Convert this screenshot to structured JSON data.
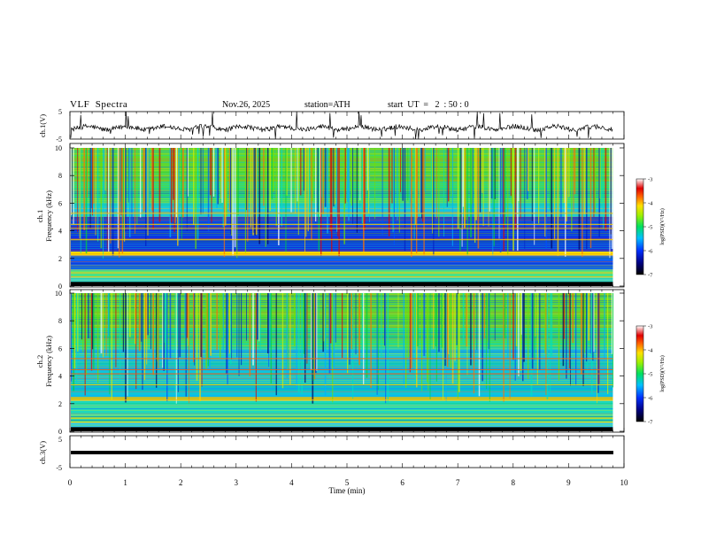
{
  "header": {
    "title": "VLF  Spectra",
    "date": "Nov.26, 2025",
    "station": "station=ATH",
    "start": "start  UT  =   2  : 50 : 0"
  },
  "chart_data": [
    {
      "type": "line",
      "name": "ch1-waveform",
      "ylabel": "ch.1(V)",
      "ylim": [
        -5,
        5
      ],
      "y_tick_labels": [
        "5",
        "-5"
      ],
      "xlim": [
        0,
        10
      ],
      "data_extent_min": [
        0,
        9.8
      ],
      "baseline_v": -1
    },
    {
      "type": "heatmap",
      "name": "ch1-spectrogram",
      "ylabel_line1": "ch.1",
      "ylabel_line2": "Frequency  (kHz)",
      "ylim": [
        0,
        10
      ],
      "y_tick_labels": [
        "10",
        "8",
        "6",
        "4",
        "2",
        "0"
      ],
      "xlim": [
        0,
        10
      ],
      "data_extent_min": [
        0,
        9.8
      ],
      "colorbar": {
        "label": "log(PSD)(V²/Hz)",
        "range": [
          -7,
          -3
        ],
        "tick_labels": [
          "-3",
          "-4",
          "-5",
          "-6",
          "-7"
        ]
      }
    },
    {
      "type": "heatmap",
      "name": "ch2-spectrogram",
      "ylabel_line1": "ch.2",
      "ylabel_line2": "Frequency  (kHz)",
      "ylim": [
        0,
        10
      ],
      "y_tick_labels": [
        "10",
        "8",
        "6",
        "4",
        "2",
        "0"
      ],
      "xlim": [
        0,
        10
      ],
      "data_extent_min": [
        0,
        9.8
      ],
      "colorbar": {
        "label": "log(PSD)(V²/Hz)",
        "range": [
          -7,
          -3
        ],
        "tick_labels": [
          "-3",
          "-4",
          "-5",
          "-6",
          "-7"
        ]
      }
    },
    {
      "type": "line",
      "name": "ch3-waveform",
      "ylabel": "ch.3(V)",
      "ylim": [
        -5,
        5
      ],
      "y_tick_labels": [
        "5",
        "-5"
      ],
      "xlim": [
        0,
        10
      ],
      "data_extent_min": [
        0,
        9.8
      ],
      "baseline_v": 0
    }
  ],
  "xaxis": {
    "label": "Time  (min)",
    "tick_labels": [
      "0",
      "1",
      "2",
      "3",
      "4",
      "5",
      "6",
      "7",
      "8",
      "9",
      "10"
    ]
  }
}
